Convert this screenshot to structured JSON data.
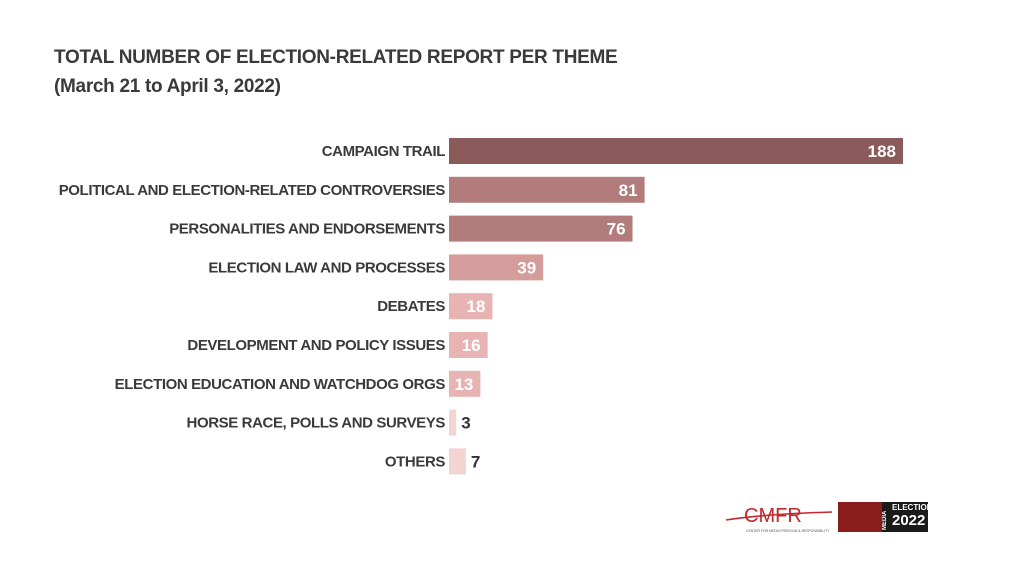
{
  "header": {
    "title": "TOTAL NUMBER OF ELECTION-RELATED REPORT PER THEME",
    "subtitle": "(March 21 to April 3, 2022)"
  },
  "chart_data": {
    "type": "bar",
    "orientation": "horizontal",
    "title": "TOTAL NUMBER OF ELECTION-RELATED REPORT PER THEME",
    "subtitle": "(March 21 to April 3, 2022)",
    "categories": [
      "CAMPAIGN TRAIL",
      "POLITICAL AND ELECTION-RELATED CONTROVERSIES",
      "PERSONALITIES AND ENDORSEMENTS",
      "ELECTION LAW AND PROCESSES",
      "DEBATES",
      "DEVELOPMENT AND POLICY ISSUES",
      "ELECTION EDUCATION AND WATCHDOG ORGS",
      "HORSE RACE, POLLS AND SURVEYS",
      "OTHERS"
    ],
    "values": [
      188,
      81,
      76,
      39,
      18,
      16,
      13,
      3,
      7
    ],
    "colors": [
      "#8b5a5a",
      "#b27c7c",
      "#b27c7c",
      "#d59c9c",
      "#e8b3b3",
      "#e8b3b3",
      "#e8b3b3",
      "#f4d3d3",
      "#f4d3d3"
    ],
    "label_colors": [
      "#ffffff",
      "#ffffff",
      "#ffffff",
      "#ffffff",
      "#ffffff",
      "#ffffff",
      "#ffffff",
      "#333333",
      "#333333"
    ],
    "xlabel": "",
    "ylabel": "",
    "xlim": [
      0,
      188
    ],
    "grid": false,
    "legend": "none"
  },
  "logos": {
    "cmfr_name": "CMFR",
    "cmfr_tagline": "CENTER FOR MEDIA FREEDOM & RESPONSIBILITY",
    "elections_vertical": "MEDIA",
    "elections_top": "ELECTIONS",
    "elections_year": "2022"
  }
}
